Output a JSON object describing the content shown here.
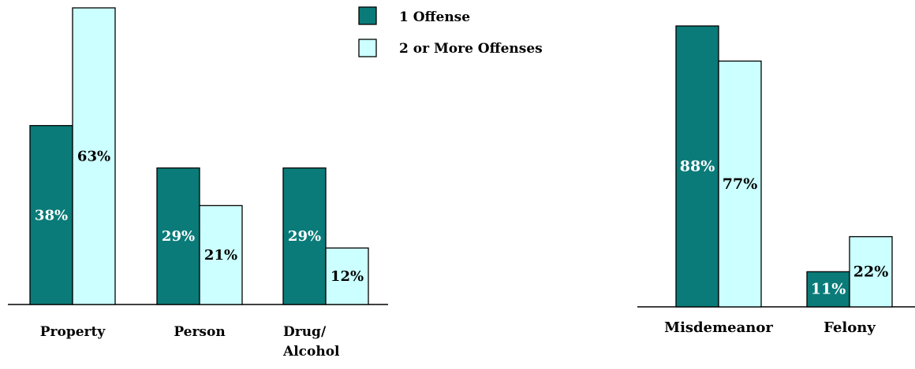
{
  "legend": {
    "items": [
      {
        "label": "1 Offense",
        "color": "#0a7b78"
      },
      {
        "label": "2 or More Offenses",
        "color": "#ccffff"
      }
    ]
  },
  "colors": {
    "one_offense": "#0a7b78",
    "two_plus_offenses": "#ccffff",
    "label_on_dark": "#ffffff",
    "label_on_light": "#000000"
  },
  "chart_data": [
    {
      "type": "bar",
      "categories": [
        "Property",
        "Person",
        "Drug/\nAlcohol"
      ],
      "series": [
        {
          "name": "1 Offense",
          "values": [
            38,
            29,
            29
          ]
        },
        {
          "name": "2 or More Offenses",
          "values": [
            63,
            21,
            12
          ]
        }
      ],
      "value_labels": [
        [
          "38%",
          "29%",
          "29%"
        ],
        [
          "63%",
          "21%",
          "12%"
        ]
      ],
      "ylim": [
        0,
        63
      ],
      "xlabel": "",
      "ylabel": "",
      "grid": false,
      "legend_position": "top-right"
    },
    {
      "type": "bar",
      "categories": [
        "Misdemeanor",
        "Felony"
      ],
      "series": [
        {
          "name": "1 Offense",
          "values": [
            88,
            11
          ]
        },
        {
          "name": "2 or More Offenses",
          "values": [
            77,
            22
          ]
        }
      ],
      "value_labels": [
        [
          "88%",
          "11%"
        ],
        [
          "77%",
          "22%"
        ]
      ],
      "ylim": [
        0,
        88
      ],
      "xlabel": "",
      "ylabel": "",
      "grid": false
    }
  ]
}
